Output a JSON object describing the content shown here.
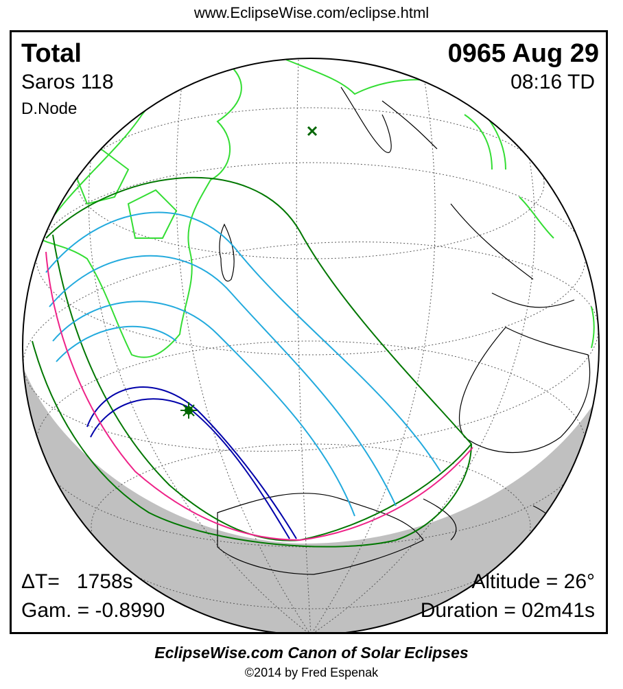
{
  "header": {
    "url": "www.EclipseWise.com/eclipse.html"
  },
  "eclipse": {
    "type": "Total",
    "date": "0965 Aug 29",
    "saros": "Saros 118",
    "time": "08:16 TD",
    "node": "D.Node",
    "delta_t": "ΔT=   1758s",
    "gamma": "Gam. = -0.8990",
    "altitude": "Altitude = 26°",
    "duration": "Duration = 02m41s"
  },
  "colors": {
    "land_outline": "#000000",
    "sunlit_land": "#33dd33",
    "night_shade": "#c0c0c0",
    "penumbra_limit": "#007700",
    "partial_magnitude_curves": "#22aadd",
    "central_path": "#0000aa",
    "rise_set_curve": "#ee2288",
    "greatest_eclipse_marker": "#006600",
    "subsolar_marker": "#006600"
  },
  "footer": {
    "title": "EclipseWise.com Canon of Solar Eclipses",
    "credit": "©2014 by Fred Espenak"
  }
}
